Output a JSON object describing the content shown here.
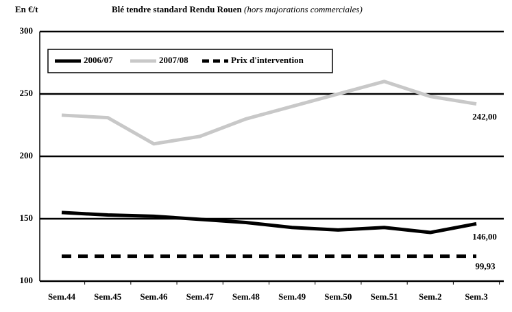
{
  "chart_data": {
    "type": "line",
    "title": "Blé tendre standard Rendu Rouen",
    "subtitle": "(hors majorations commerciales)",
    "y_label": "En €/t",
    "categories": [
      "Sem.44",
      "Sem.45",
      "Sem.46",
      "Sem.47",
      "Sem.48",
      "Sem.49",
      "Sem.50",
      "Sem.51",
      "Sem.2",
      "Sem.3"
    ],
    "series": [
      {
        "name": "2006/07",
        "color": "#000000",
        "dashed": false,
        "values": [
          155,
          153,
          152,
          149.5,
          147,
          143,
          141,
          143,
          139,
          146
        ],
        "value_labels": [
          null,
          null,
          null,
          null,
          null,
          null,
          null,
          null,
          null,
          "146,00"
        ]
      },
      {
        "name": "2007/08",
        "color": "#c8c8c8",
        "dashed": false,
        "values": [
          233,
          231,
          210,
          216,
          230,
          240,
          250,
          260,
          248,
          242
        ],
        "value_labels": [
          null,
          null,
          null,
          null,
          null,
          null,
          null,
          null,
          null,
          "242,00"
        ]
      },
      {
        "name": "Prix d'intervention",
        "color": "#000000",
        "dashed": true,
        "values": [
          120,
          120,
          120,
          120,
          120,
          120,
          120,
          120,
          120,
          120
        ]
      }
    ],
    "annotations": [
      "99,93"
    ],
    "ylim": [
      100,
      300
    ],
    "yticks": [
      100,
      150,
      200,
      250,
      300
    ],
    "grid": true,
    "legend": "top-left"
  }
}
